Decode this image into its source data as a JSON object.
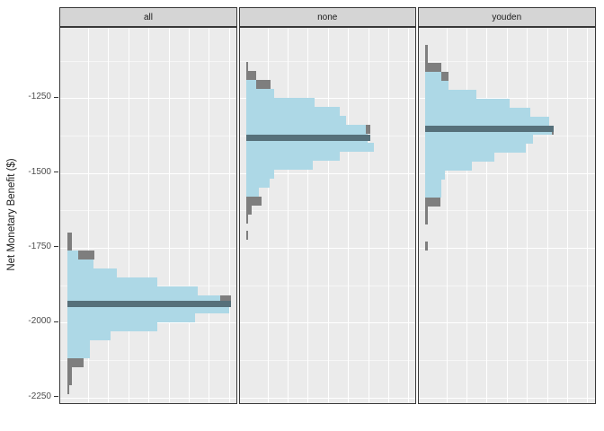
{
  "figure": {
    "y_axis": {
      "title": "Net Monetary Benefit ($)",
      "ticks": [
        "-1250",
        "-1500",
        "-1750",
        "-2000",
        "-2250"
      ],
      "tick_values": [
        -1250,
        -1500,
        -1750,
        -2000,
        -2250
      ]
    },
    "colors": {
      "panel_background": "#ebebeb",
      "strip_background": "#d5d5d5",
      "gridline": "#ffffff",
      "panel_border": "#383838",
      "histogram_primary": "#add8e6",
      "histogram_secondary": "#7e7e7e",
      "mean_line": "#56707a",
      "tick_text": "#4d4d4d"
    }
  },
  "chart_data": {
    "type": "bar",
    "subtype": "faceted-horizontal-histogram",
    "title": "",
    "xlabel": "",
    "ylabel": "Net Monetary Benefit ($)",
    "ylim": [
      -2290,
      -1015
    ],
    "grid": true,
    "facets": [
      "all",
      "none",
      "youden"
    ],
    "bin_size_dollars": 30,
    "note_units": "bar lengths are unlabeled frequency, recorded as px from baseline",
    "panels": [
      {
        "label": "all",
        "mean_nmb": -1938,
        "mean_len": 182,
        "bins": [
          {
            "nmb": -1699,
            "blue": 0,
            "gray": 5
          },
          {
            "nmb": -1729,
            "blue": 0,
            "gray": 5
          },
          {
            "nmb": -1759,
            "blue": 12,
            "gray": 30
          },
          {
            "nmb": -1789,
            "blue": 29,
            "gray": 0
          },
          {
            "nmb": -1819,
            "blue": 55,
            "gray": 0
          },
          {
            "nmb": -1849,
            "blue": 100,
            "gray": 0
          },
          {
            "nmb": -1879,
            "blue": 145,
            "gray": 0
          },
          {
            "nmb": -1909,
            "blue": 170,
            "gray": 182
          },
          {
            "nmb": -1939,
            "blue": 180,
            "gray": 0
          },
          {
            "nmb": -1969,
            "blue": 142,
            "gray": 0
          },
          {
            "nmb": -1999,
            "blue": 100,
            "gray": 0
          },
          {
            "nmb": -2029,
            "blue": 48,
            "gray": 0
          },
          {
            "nmb": -2059,
            "blue": 25,
            "gray": 0
          },
          {
            "nmb": -2089,
            "blue": 25,
            "gray": 0
          },
          {
            "nmb": -2119,
            "blue": 0,
            "gray": 18
          },
          {
            "nmb": -2149,
            "blue": 0,
            "gray": 5
          },
          {
            "nmb": -2179,
            "blue": 0,
            "gray": 5
          },
          {
            "nmb": -2209,
            "blue": 0,
            "gray": 2
          }
        ]
      },
      {
        "label": "none",
        "mean_nmb": -1382,
        "mean_len": 138,
        "bins": [
          {
            "nmb": -1129,
            "blue": 0,
            "gray": 2
          },
          {
            "nmb": -1159,
            "blue": 0,
            "gray": 11
          },
          {
            "nmb": -1189,
            "blue": 11,
            "gray": 27
          },
          {
            "nmb": -1219,
            "blue": 31,
            "gray": 0
          },
          {
            "nmb": -1249,
            "blue": 76,
            "gray": 0
          },
          {
            "nmb": -1279,
            "blue": 104,
            "gray": 0
          },
          {
            "nmb": -1309,
            "blue": 111,
            "gray": 0
          },
          {
            "nmb": -1339,
            "blue": 133,
            "gray": 138
          },
          {
            "nmb": -1369,
            "blue": 135,
            "gray": 0
          },
          {
            "nmb": -1399,
            "blue": 142,
            "gray": 0
          },
          {
            "nmb": -1429,
            "blue": 104,
            "gray": 0
          },
          {
            "nmb": -1459,
            "blue": 74,
            "gray": 0
          },
          {
            "nmb": -1489,
            "blue": 31,
            "gray": 0
          },
          {
            "nmb": -1519,
            "blue": 26,
            "gray": 0
          },
          {
            "nmb": -1549,
            "blue": 14,
            "gray": 0
          },
          {
            "nmb": -1579,
            "blue": 0,
            "gray": 17
          },
          {
            "nmb": -1609,
            "blue": 0,
            "gray": 6
          },
          {
            "nmb": -1639,
            "blue": 0,
            "gray": 2
          },
          {
            "nmb": -1693,
            "blue": 0,
            "gray": 2
          }
        ]
      },
      {
        "label": "youden",
        "mean_nmb": -1354,
        "mean_len": 143,
        "bins": [
          {
            "nmb": -1072,
            "blue": 0,
            "gray": 3
          },
          {
            "nmb": -1102,
            "blue": 0,
            "gray": 3
          },
          {
            "nmb": -1132,
            "blue": 0,
            "gray": 18
          },
          {
            "nmb": -1162,
            "blue": 18,
            "gray": 26
          },
          {
            "nmb": -1192,
            "blue": 26,
            "gray": 0
          },
          {
            "nmb": -1222,
            "blue": 57,
            "gray": 0
          },
          {
            "nmb": -1252,
            "blue": 94,
            "gray": 0
          },
          {
            "nmb": -1282,
            "blue": 117,
            "gray": 0
          },
          {
            "nmb": -1312,
            "blue": 138,
            "gray": 0
          },
          {
            "nmb": -1342,
            "blue": 141,
            "gray": 143
          },
          {
            "nmb": -1372,
            "blue": 120,
            "gray": 0
          },
          {
            "nmb": -1402,
            "blue": 112,
            "gray": 0
          },
          {
            "nmb": -1432,
            "blue": 77,
            "gray": 0
          },
          {
            "nmb": -1462,
            "blue": 52,
            "gray": 0
          },
          {
            "nmb": -1492,
            "blue": 22,
            "gray": 0
          },
          {
            "nmb": -1522,
            "blue": 18,
            "gray": 0
          },
          {
            "nmb": -1552,
            "blue": 18,
            "gray": 0
          },
          {
            "nmb": -1582,
            "blue": 0,
            "gray": 17
          },
          {
            "nmb": -1612,
            "blue": 0,
            "gray": 3
          },
          {
            "nmb": -1642,
            "blue": 0,
            "gray": 3
          },
          {
            "nmb": -1729,
            "blue": 0,
            "gray": 3
          }
        ]
      }
    ]
  }
}
